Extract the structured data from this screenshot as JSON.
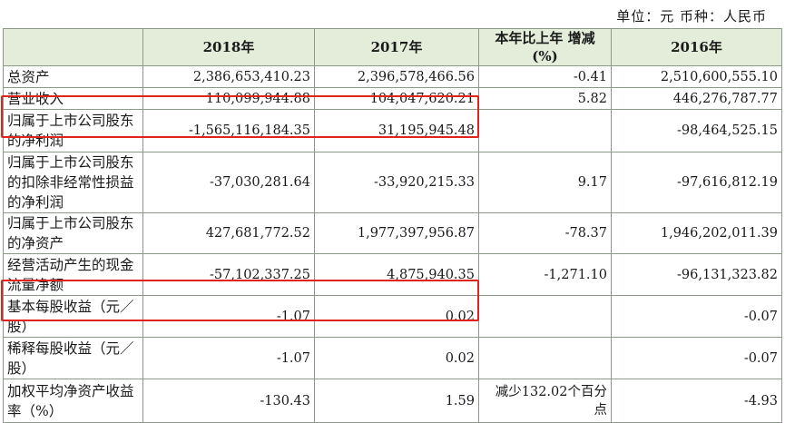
{
  "unit_line": "单位：元 币种：人民币",
  "headers": [
    "",
    "2018年",
    "2017年",
    "本年比上年 增减(%)",
    "2016年"
  ],
  "rows": [
    {
      "label": "总资产",
      "y2018": "2,386,653,410.23",
      "y2017": "2,396,578,466.56",
      "change": "-0.41",
      "y2016": "2,510,600,555.10"
    },
    {
      "label": "营业收入",
      "y2018": "110,099,944.88",
      "y2017": "104,047,620.21",
      "change": "5.82",
      "y2016": "446,276,787.77"
    },
    {
      "label": "归属于上市公司股东的净利润",
      "y2018": "-1,565,116,184.35",
      "y2017": "31,195,945.48",
      "change": "",
      "y2016": "-98,464,525.15"
    },
    {
      "label": "归属于上市公司股东的扣除非经常性损益的净利润",
      "y2018": "-37,030,281.64",
      "y2017": "-33,920,215.33",
      "change": "9.17",
      "y2016": "-97,616,812.19"
    },
    {
      "label": "归属于上市公司股东的净资产",
      "y2018": "427,681,772.52",
      "y2017": "1,977,397,956.87",
      "change": "-78.37",
      "y2016": "1,946,202,011.39"
    },
    {
      "label": "经营活动产生的现金流量净额",
      "y2018": "-57,102,337.25",
      "y2017": "4,875,940.35",
      "change": "-1,271.10",
      "y2016": "-96,131,323.82"
    },
    {
      "label": "基本每股收益（元／股）",
      "y2018": "-1.07",
      "y2017": "0.02",
      "change": "",
      "y2016": "-0.07"
    },
    {
      "label": "稀释每股收益（元／股）",
      "y2018": "-1.07",
      "y2017": "0.02",
      "change": "",
      "y2016": "-0.07"
    },
    {
      "label": "加权平均净资产收益率（%）",
      "y2018": "-130.43",
      "y2017": "1.59",
      "change": "减少132.02个百分点",
      "y2016": "-4.93"
    }
  ],
  "highlight_color": "#e0241c"
}
